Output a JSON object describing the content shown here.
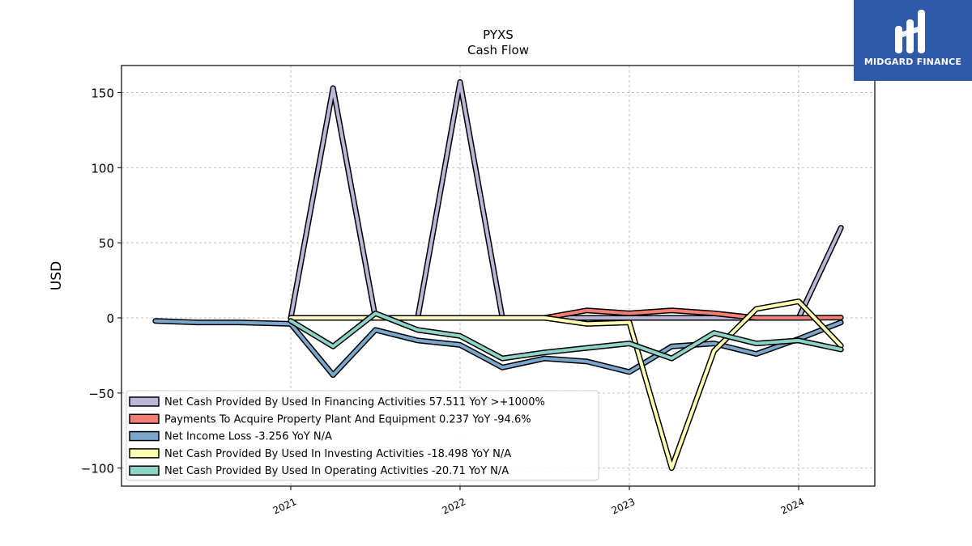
{
  "chart_data": {
    "type": "line",
    "title": "PYXS",
    "subtitle": "Cash Flow",
    "ylabel": "USD",
    "xlabel": "",
    "ylim": [
      -112,
      168
    ],
    "xlim": [
      2020.0,
      2024.45
    ],
    "yticks": [
      150,
      100,
      50,
      0,
      -50,
      -100
    ],
    "ytick_labels": [
      "150",
      "100",
      "50",
      "0",
      "−50",
      "−100"
    ],
    "xticks": [
      2021,
      2022,
      2023,
      2024
    ],
    "xtick_labels": [
      "2021",
      "2022",
      "2023",
      "2024"
    ],
    "grid": true,
    "legend_position": "lower-left",
    "series": [
      {
        "name": "Net Cash Provided By Used In Financing Activities  57.511 YoY >+1000%",
        "color": "#bcb6d8",
        "x": [
          2021.0,
          2021.25,
          2021.5,
          2021.75,
          2022.0,
          2022.25,
          2022.5,
          2022.75,
          2023.0,
          2023.25,
          2023.5,
          2023.75,
          2024.0,
          2024.25
        ],
        "values": [
          0,
          153,
          0,
          0,
          157,
          0,
          0,
          0,
          0,
          0,
          0,
          0,
          0,
          60
        ]
      },
      {
        "name": "Payments To Acquire Property Plant And Equipment  0.237 YoY -94.6%",
        "color": "#f47f72",
        "x": [
          2021.0,
          2021.25,
          2021.5,
          2021.75,
          2022.0,
          2022.25,
          2022.5,
          2022.75,
          2023.0,
          2023.25,
          2023.5,
          2023.75,
          2024.0,
          2024.25
        ],
        "values": [
          0,
          0,
          0,
          0,
          0,
          0,
          0,
          5,
          3,
          5,
          3,
          0,
          0,
          0.24
        ]
      },
      {
        "name": "Net Income Loss  -3.256 YoY N/A",
        "color": "#7ba7cc",
        "x": [
          2020.2,
          2020.45,
          2020.7,
          2021.0,
          2021.25,
          2021.5,
          2021.75,
          2022.0,
          2022.25,
          2022.5,
          2022.75,
          2023.0,
          2023.25,
          2023.5,
          2023.75,
          2024.0,
          2024.25
        ],
        "values": [
          -2,
          -3,
          -3,
          -4,
          -38,
          -8,
          -15,
          -18,
          -33,
          -27,
          -29,
          -36,
          -19,
          -17,
          -24,
          -14,
          -3
        ]
      },
      {
        "name": "Net Cash Provided By Used In Investing Activities  -18.498 YoY N/A",
        "color": "#ffffb3",
        "x": [
          2021.0,
          2021.25,
          2021.5,
          2021.75,
          2022.0,
          2022.25,
          2022.5,
          2022.75,
          2023.0,
          2023.25,
          2023.5,
          2023.75,
          2024.0,
          2024.25
        ],
        "values": [
          0,
          0,
          0,
          0,
          0,
          0,
          0,
          -4,
          -3,
          -100,
          -22,
          6,
          11,
          -18.5
        ]
      },
      {
        "name": "Net Cash Provided By Used In Operating Activities  -20.71 YoY N/A",
        "color": "#8dd3c7",
        "x": [
          2021.0,
          2021.25,
          2021.5,
          2021.75,
          2022.0,
          2022.25,
          2022.5,
          2022.75,
          2023.0,
          2023.25,
          2023.5,
          2023.75,
          2024.0,
          2024.25
        ],
        "values": [
          -2,
          -19,
          3,
          -8,
          -12,
          -27,
          -23,
          -20,
          -17,
          -27,
          -10,
          -17,
          -15,
          -21
        ]
      }
    ]
  },
  "logo": {
    "text": "MIDGARD FINANCE",
    "color": "#2f5aa8"
  }
}
